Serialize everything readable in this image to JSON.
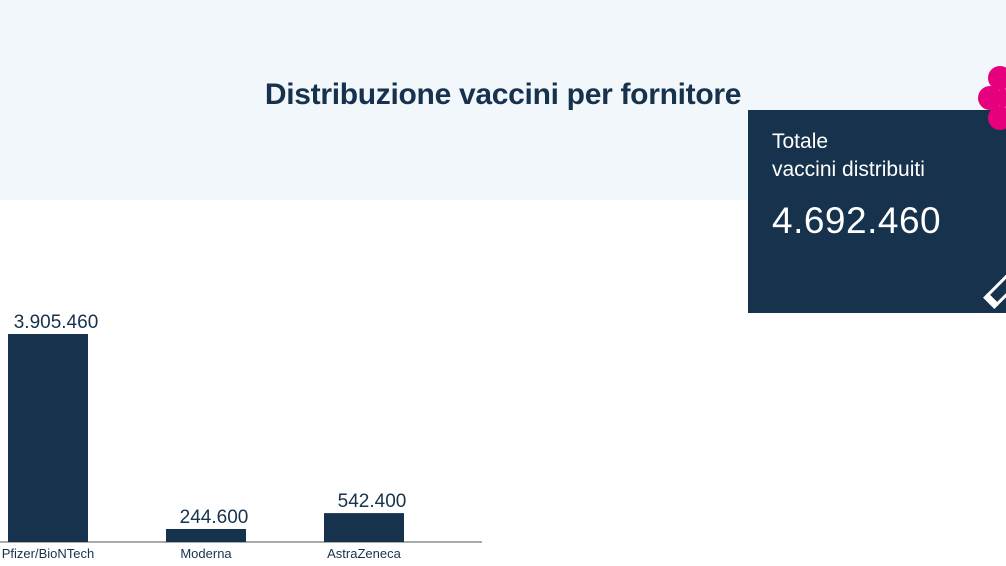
{
  "header": {
    "title": "Distribuzione vaccini per fornitore"
  },
  "total_card": {
    "label_line1": "Totale",
    "label_line2": "vaccini distribuiti",
    "value": "4.692.460",
    "icon": "pencil-icon",
    "bg_color": "#17324d"
  },
  "decoration": {
    "icon": "flower-icon",
    "color": "#e6007e"
  },
  "chart_data": {
    "type": "bar",
    "categories": [
      "Pfizer/BioNTech",
      "Moderna",
      "AstraZeneca"
    ],
    "values": [
      3905460,
      244600,
      542400
    ],
    "value_labels": [
      "3.905.460",
      "244.600",
      "542.400"
    ],
    "title": "",
    "xlabel": "",
    "ylabel": "",
    "ylim": [
      0,
      3905460
    ],
    "grid": false,
    "legend": "none",
    "bar_color": "#17324d"
  }
}
